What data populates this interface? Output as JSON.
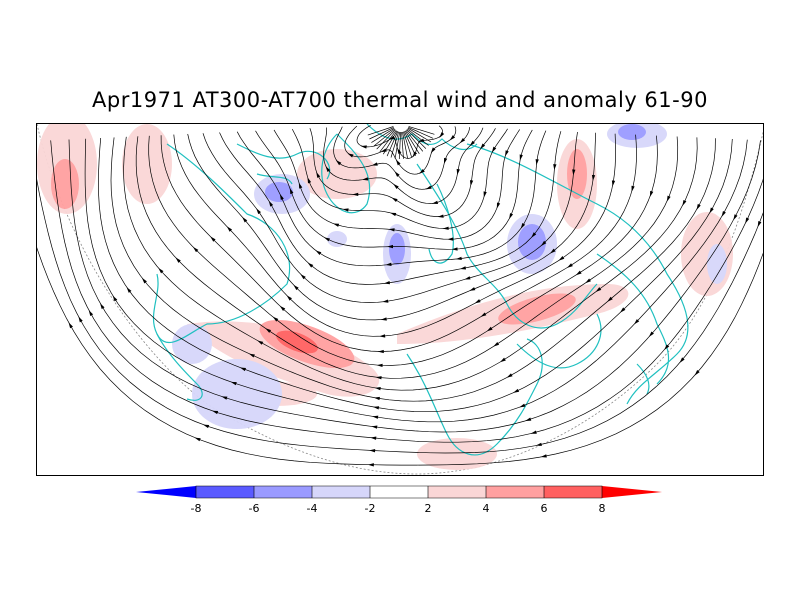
{
  "title": "Apr1971 AT300-AT700 thermal wind and anomaly 61-90",
  "colorbar": {
    "labels": [
      "-8",
      "-6",
      "-4",
      "-2",
      "2",
      "4",
      "6",
      "8"
    ],
    "colors": {
      "below_min": "#0000ff",
      "-8_-6": "#5a5aff",
      "-6_-4": "#9a9aff",
      "-4_-2": "#d6d6fa",
      "-2_2": "#ffffff",
      "2_4": "#fad6d6",
      "4_6": "#ffa0a0",
      "6_8": "#ff6060",
      "above_max": "#ff0000"
    }
  },
  "map": {
    "projection": "polar-stereographic-northern-hemisphere",
    "coastline_color": "#20c0c0",
    "streamline_color": "#000000"
  }
}
